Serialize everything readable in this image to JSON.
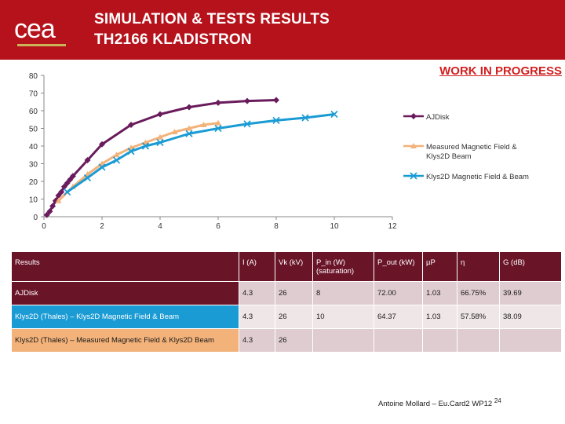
{
  "header": {
    "logo_text": "cea",
    "logo_tagline": "",
    "title_line1": "SIMULATION & TESTS RESULTS",
    "title_line2": "TH2166 KLADISTRON"
  },
  "banner": "WORK IN PROGRESS",
  "chart_data": {
    "type": "line",
    "title": "",
    "xlabel": "",
    "ylabel": "",
    "xlim": [
      0,
      12
    ],
    "ylim": [
      0,
      80
    ],
    "xticks": [
      "0",
      "2",
      "4",
      "6",
      "8",
      "10",
      "12"
    ],
    "yticks": [
      "0",
      "10",
      "20",
      "30",
      "40",
      "50",
      "60",
      "70",
      "80"
    ],
    "grid": false,
    "legend_placement": "right",
    "series": [
      {
        "name": "AJDisk",
        "color": "#6a1b5c",
        "marker": "diamond",
        "x": [
          0.1,
          0.2,
          0.3,
          0.4,
          0.5,
          0.6,
          0.7,
          0.8,
          0.9,
          1.0,
          1.5,
          2.0,
          3.0,
          4.0,
          5.0,
          6.0,
          7.0,
          8.0
        ],
        "y": [
          1,
          3,
          6,
          9,
          12,
          14,
          17,
          19,
          21,
          23,
          32,
          41,
          52,
          58,
          62,
          64.5,
          65.5,
          66
        ]
      },
      {
        "name": "Measured Magnetic Field & Klys2D Beam",
        "color": "#f2b27a",
        "marker": "triangle",
        "x": [
          0.5,
          1.0,
          1.5,
          2.0,
          2.5,
          3.0,
          3.5,
          4.0,
          4.5,
          5.0,
          5.5,
          6.0
        ],
        "y": [
          9,
          17,
          24,
          30,
          35,
          39,
          42,
          45,
          48,
          50,
          52,
          53
        ]
      },
      {
        "name": "Klys2D Magnetic Field & Beam",
        "color": "#1a9bd4",
        "marker": "x",
        "x": [
          0.8,
          1.5,
          2.0,
          2.5,
          3.0,
          3.5,
          4.0,
          5.0,
          6.0,
          7.0,
          8.0,
          9.0,
          10.0
        ],
        "y": [
          14,
          22,
          28,
          32,
          37,
          40,
          42,
          47,
          50,
          52.5,
          54.5,
          56,
          58
        ]
      }
    ]
  },
  "table": {
    "headers": [
      "Results",
      "I (A)",
      "Vk (kV)",
      "P_in (W) (saturation)",
      "P_out (kW)",
      "µP",
      "η",
      "G (dB)"
    ],
    "rows": [
      [
        "AJDisk",
        "4.3",
        "26",
        "8",
        "72.00",
        "1.03",
        "66.75%",
        "39.69"
      ],
      [
        "Klys2D (Thales) – Klys2D Magnetic Field & Beam",
        "4.3",
        "26",
        "10",
        "64.37",
        "1.03",
        "57.58%",
        "38.09"
      ],
      [
        "Klys2D (Thales) – Measured Magnetic Field & Klys2D Beam",
        "4.3",
        "26",
        "",
        "",
        "",
        "",
        ""
      ]
    ]
  },
  "footer": {
    "text": "Antoine Mollard – Eu.Card2 WP12",
    "page": "24"
  }
}
